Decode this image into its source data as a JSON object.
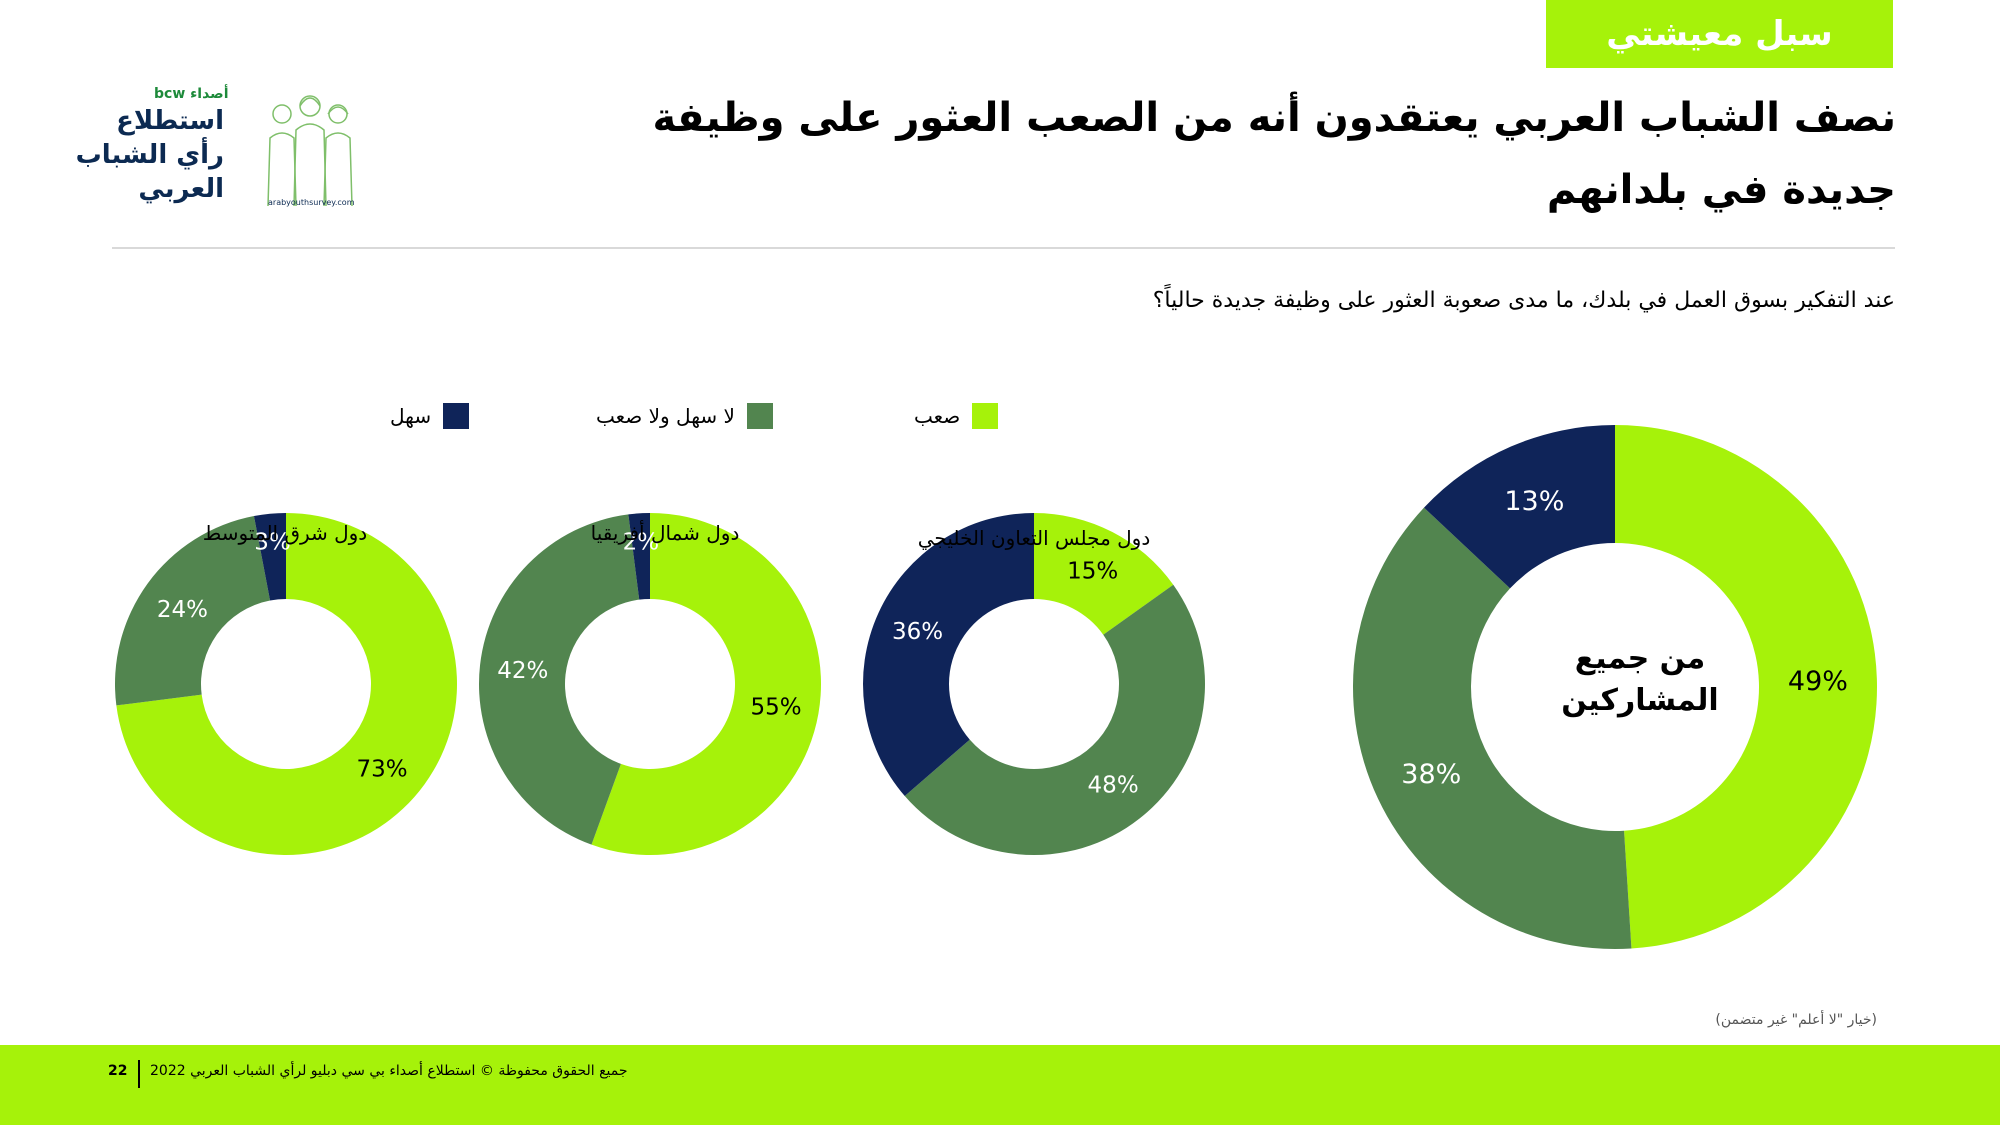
{
  "header": {
    "tag": "سبل معيشتي",
    "title": "نصف الشباب العربي يعتقدون أنه من الصعب العثور على وظيفة جديدة في بلدانهم"
  },
  "logo": {
    "brand": "bcw أصداء",
    "line1": "استطلاع",
    "line2": "رأي الشباب",
    "line3": "العربي",
    "url": "arabyouthsurvey.com"
  },
  "question": "عند التفكير بسوق العمل في بلدك، ما مدى صعوبة العثور على وظيفة جديدة حالياً؟",
  "legend": [
    {
      "label": "صعب",
      "color": "#a6f20a"
    },
    {
      "label": "لا سهل ولا صعب",
      "color": "#52854f"
    },
    {
      "label": "سهل",
      "color": "#0f2459"
    }
  ],
  "colors": {
    "difficult": "#a6f20a",
    "neutral": "#52854f",
    "easy": "#0f2459"
  },
  "chart_data": [
    {
      "type": "pie",
      "title": "من جميع المشاركين",
      "categories": [
        "صعب",
        "لا سهل ولا صعب",
        "سهل"
      ],
      "values": [
        49,
        38,
        13
      ]
    },
    {
      "type": "pie",
      "title": "دول مجلس التعاون الخليجي",
      "categories": [
        "صعب",
        "لا سهل ولا صعب",
        "سهل"
      ],
      "values": [
        15,
        48,
        36
      ]
    },
    {
      "type": "pie",
      "title": "دول شمال أفريقيا",
      "categories": [
        "صعب",
        "لا سهل ولا صعب",
        "سهل"
      ],
      "values": [
        55,
        42,
        2
      ]
    },
    {
      "type": "pie",
      "title": "دول شرق المتوسط",
      "categories": [
        "صعب",
        "لا سهل ولا صعب",
        "سهل"
      ],
      "values": [
        73,
        24,
        3
      ]
    }
  ],
  "note": "(خيار \"لا أعلم\" غير متضمن)",
  "footer": {
    "text": "جميع الحقوق محفوظة © استطلاع أصداء بي سي دبليو لرأي الشباب العربي 2022",
    "page": "22"
  }
}
